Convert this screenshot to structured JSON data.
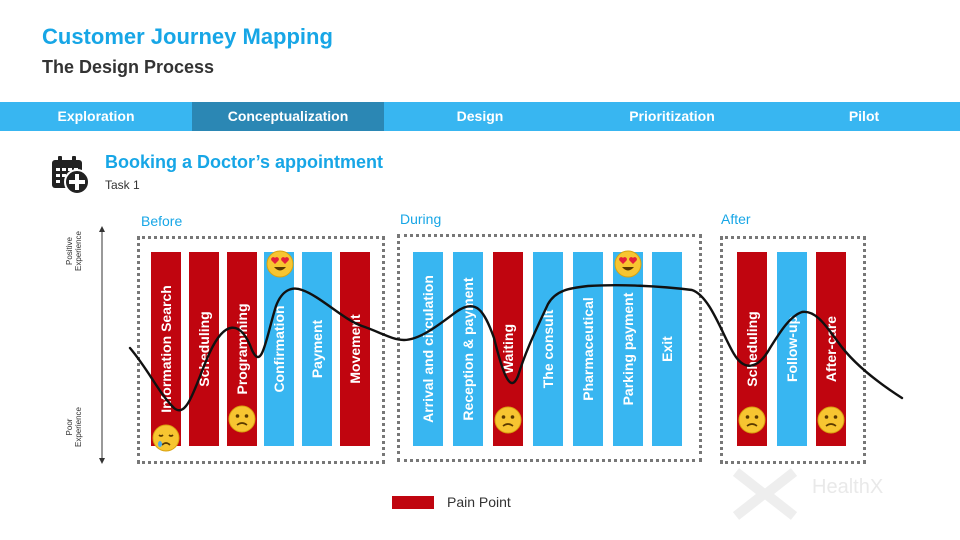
{
  "header": {
    "title": "Customer Journey Mapping",
    "subtitle": "The Design Process"
  },
  "tabs": [
    {
      "label": "Exploration",
      "active": false
    },
    {
      "label": "Conceptualization",
      "active": true
    },
    {
      "label": "Design",
      "active": false
    },
    {
      "label": "Prioritization",
      "active": false
    },
    {
      "label": "Pilot",
      "active": false
    }
  ],
  "task": {
    "icon": "calendar-medical-icon",
    "title": "Booking a Doctor’s appointment",
    "subtitle": "Task 1"
  },
  "axis": {
    "top_label_line1": "Positive",
    "top_label_line2": "Experience",
    "bottom_label_line1": "Poor",
    "bottom_label_line2": "Experience"
  },
  "phases": [
    {
      "label": "Before",
      "stages": [
        {
          "label": "Information Search",
          "pain_point": true
        },
        {
          "label": "Scheduling",
          "pain_point": true
        },
        {
          "label": "Programming",
          "pain_point": true
        },
        {
          "label": "Confirmation",
          "pain_point": false
        },
        {
          "label": "Payment",
          "pain_point": false
        },
        {
          "label": "Movement",
          "pain_point": true
        }
      ]
    },
    {
      "label": "During",
      "stages": [
        {
          "label": "Arrival and circulation",
          "pain_point": false
        },
        {
          "label": "Reception & payment",
          "pain_point": false
        },
        {
          "label": "Waiting",
          "pain_point": true
        },
        {
          "label": "The consult",
          "pain_point": false
        },
        {
          "label": "Pharmaceutical",
          "pain_point": false
        },
        {
          "label": "Parking payment",
          "pain_point": false
        },
        {
          "label": "Exit",
          "pain_point": false
        }
      ]
    },
    {
      "label": "After",
      "stages": [
        {
          "label": "Scheduling",
          "pain_point": true
        },
        {
          "label": "Follow-up",
          "pain_point": false
        },
        {
          "label": "After-care",
          "pain_point": true
        }
      ]
    }
  ],
  "emotions": [
    {
      "stage": "Information Search",
      "icon": "sad-face-icon"
    },
    {
      "stage": "Programming",
      "icon": "confused-face-icon"
    },
    {
      "stage": "Confirmation",
      "icon": "heart-eyes-face-icon"
    },
    {
      "stage": "Waiting",
      "icon": "confused-face-icon"
    },
    {
      "stage": "Parking payment",
      "icon": "heart-eyes-face-icon"
    },
    {
      "stage": "Scheduling",
      "icon": "confused-face-icon"
    },
    {
      "stage": "After-care",
      "icon": "confused-face-icon"
    }
  ],
  "legend": {
    "label": "Pain Point",
    "color": "#c0050f"
  },
  "brand": "HealthX",
  "colors": {
    "accent": "#17a6e6",
    "tab_bar": "#38b6f1",
    "tab_active": "#2b87b4",
    "pain_point": "#c0050f",
    "stage": "#38b6f1"
  }
}
